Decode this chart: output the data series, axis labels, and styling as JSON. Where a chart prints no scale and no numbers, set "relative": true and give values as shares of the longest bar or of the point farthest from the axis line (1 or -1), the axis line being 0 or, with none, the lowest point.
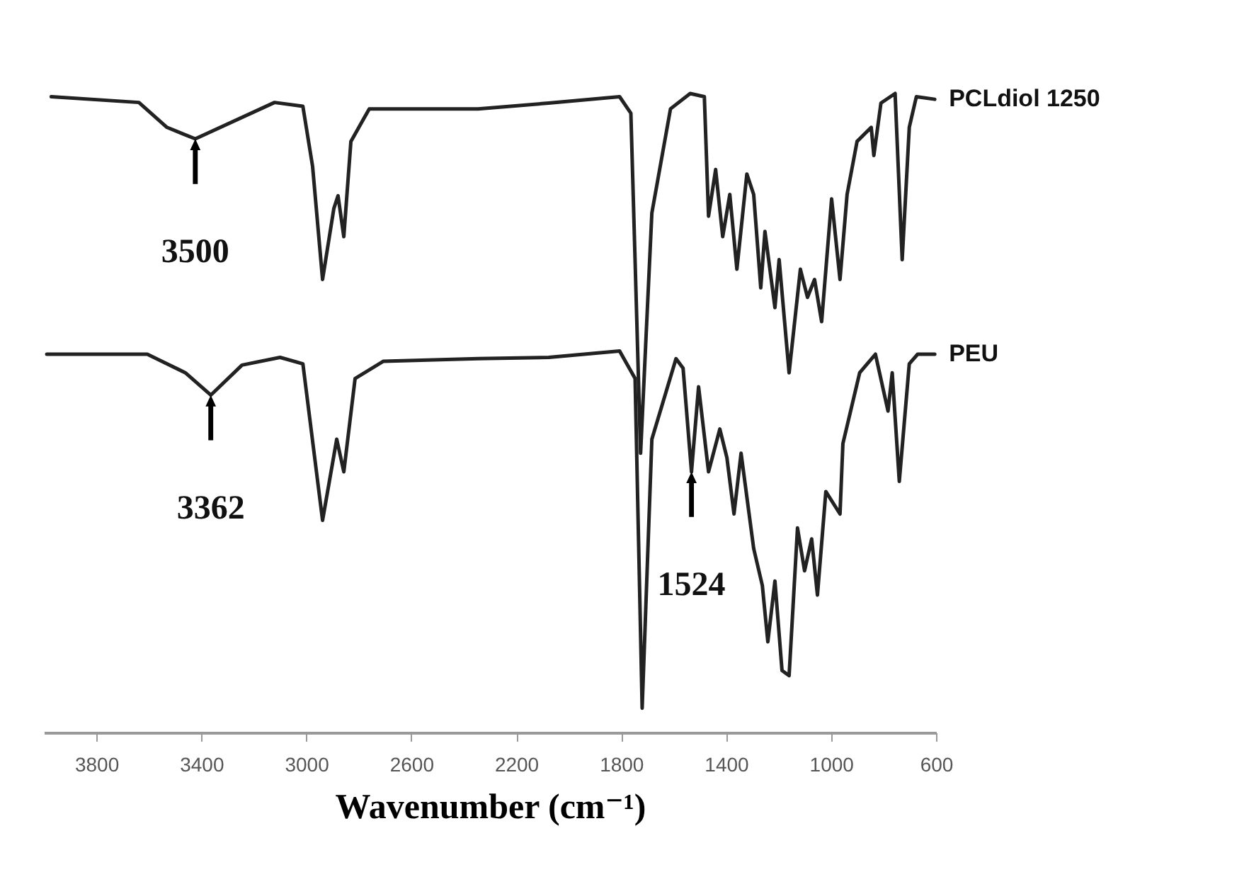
{
  "chart_data": {
    "type": "line",
    "xlabel": "Wavenumber (cm⁻¹)",
    "relative": true,
    "legend": false,
    "grid": false,
    "tick_labels": "x",
    "line_style": "solid",
    "marker": "none",
    "xlim": [
      4000,
      600
    ],
    "xticks": [
      3800,
      3400,
      3000,
      2600,
      2200,
      1800,
      1400,
      1000,
      600
    ],
    "series": [
      {
        "name": "PCLdiol 1250",
        "color": "#222222",
        "x": [
          3972,
          3638,
          3531,
          3423,
          3121,
          3013,
          2976,
          2938,
          2895,
          2879,
          2857,
          2830,
          2760,
          2345,
          2076,
          1806,
          1763,
          1726,
          1683,
          1612,
          1537,
          1483,
          1467,
          1440,
          1413,
          1386,
          1359,
          1321,
          1295,
          1268,
          1252,
          1214,
          1198,
          1160,
          1117,
          1090,
          1063,
          1036,
          998,
          966,
          939,
          901,
          847,
          837,
          810,
          756,
          729,
          702,
          675,
          605
        ],
        "values": [
          0.995,
          0.986,
          0.947,
          0.929,
          0.986,
          0.98,
          0.886,
          0.709,
          0.82,
          0.84,
          0.776,
          0.925,
          0.976,
          0.976,
          0.985,
          0.995,
          0.969,
          0.437,
          0.813,
          0.976,
          1,
          0.995,
          0.808,
          0.881,
          0.776,
          0.842,
          0.725,
          0.874,
          0.842,
          0.696,
          0.784,
          0.665,
          0.74,
          0.563,
          0.725,
          0.681,
          0.709,
          0.643,
          0.835,
          0.709,
          0.842,
          0.925,
          0.947,
          0.903,
          0.985,
          1,
          0.74,
          0.947,
          0.995,
          0.991
        ]
      },
      {
        "name": "PEU",
        "color": "#222222",
        "x": [
          3989,
          3606,
          3461,
          3364,
          3245,
          3100,
          3013,
          2938,
          2884,
          2857,
          2814,
          2706,
          2345,
          2076,
          1806,
          1747,
          1720,
          1683,
          1591,
          1564,
          1532,
          1505,
          1467,
          1424,
          1397,
          1370,
          1343,
          1295,
          1262,
          1241,
          1214,
          1187,
          1160,
          1128,
          1101,
          1074,
          1052,
          1020,
          966,
          955,
          891,
          831,
          783,
          767,
          740,
          702,
          670,
          605
        ],
        "values": [
          0.592,
          0.592,
          0.563,
          0.528,
          0.575,
          0.587,
          0.577,
          0.332,
          0.459,
          0.408,
          0.554,
          0.581,
          0.585,
          0.587,
          0.597,
          0.554,
          0.038,
          0.459,
          0.585,
          0.57,
          0.408,
          0.541,
          0.408,
          0.475,
          0.43,
          0.342,
          0.437,
          0.288,
          0.23,
          0.142,
          0.237,
          0.097,
          0.089,
          0.32,
          0.253,
          0.303,
          0.215,
          0.377,
          0.342,
          0.452,
          0.563,
          0.592,
          0.503,
          0.563,
          0.393,
          0.577,
          0.592,
          0.592
        ]
      }
    ],
    "annotations": [
      {
        "text": "3500",
        "x": 3423,
        "y": 0.929
      },
      {
        "text": "3362",
        "x": 3364,
        "y": 0.528
      },
      {
        "text": "1524",
        "x": 1532,
        "y": 0.408
      }
    ]
  }
}
